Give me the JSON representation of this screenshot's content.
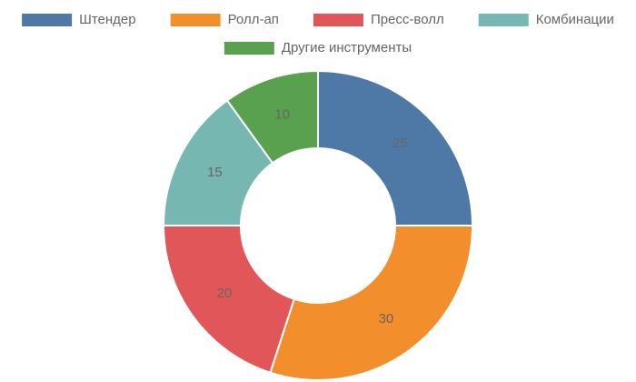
{
  "chart_data": {
    "type": "doughnut",
    "categories": [
      "Штендер",
      "Ролл-ап",
      "Пресс-волл",
      "Комбинации",
      "Другие инструменты"
    ],
    "values": [
      25,
      30,
      20,
      15,
      10
    ],
    "colors": [
      "#4e79a7",
      "#f28e2b",
      "#e15759",
      "#76b7b2",
      "#59a14f"
    ],
    "legend": "top"
  }
}
